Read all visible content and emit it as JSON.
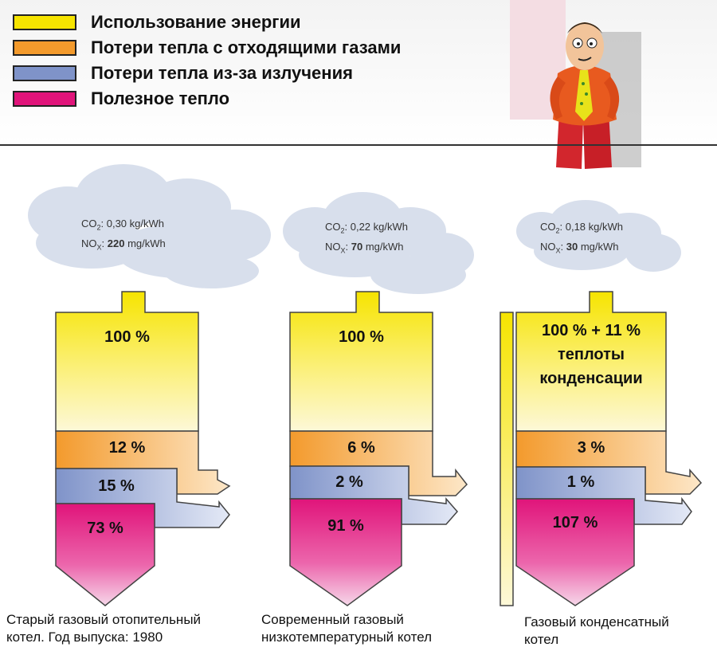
{
  "legend": [
    {
      "label": "Использование энергии",
      "color": "#f6e400"
    },
    {
      "label": "Потери тепла с отходящими газами",
      "color": "#f39a2c"
    },
    {
      "label": "Потери тепла из-за излучения",
      "color": "#7f93c9"
    },
    {
      "label": "Полезное тепло",
      "color": "#e0147a"
    }
  ],
  "boilers": [
    {
      "co2_prefix": "CO",
      "co2_sub": "2",
      "co2_value": ": 0,30 kg/kWh",
      "nox_prefix": "NO",
      "nox_sub": "X",
      "nox_sep": ": ",
      "nox_value": "220",
      "nox_unit": " mg/kWh",
      "energy_pct": "100 %",
      "exhaust_pct": "12 %",
      "radiation_pct": "15 %",
      "useful_pct": "73 %",
      "caption_line1": "Старый газовый отопительный",
      "caption_line2": "котел. Год выпуска: 1980"
    },
    {
      "co2_prefix": "CO",
      "co2_sub": "2",
      "co2_value": ": 0,22 kg/kWh",
      "nox_prefix": "NO",
      "nox_sub": "X",
      "nox_sep": ": ",
      "nox_value": "70",
      "nox_unit": " mg/kWh",
      "energy_pct": "100 %",
      "exhaust_pct": "6 %",
      "radiation_pct": "2 %",
      "useful_pct": "91 %",
      "caption_line1": "Современный газовый",
      "caption_line2": "низкотемпературный котел"
    },
    {
      "co2_prefix": "CO",
      "co2_sub": "2",
      "co2_value": ": 0,18 kg/kWh",
      "nox_prefix": "NO",
      "nox_sub": "X",
      "nox_sep": ": ",
      "nox_value": "30",
      "nox_unit": " mg/kWh",
      "energy_pct_line1": "100 % + 11 %",
      "energy_pct_line2": "теплоты",
      "energy_pct_line3": "конденсации",
      "exhaust_pct": "3 %",
      "radiation_pct": "1 %",
      "useful_pct": "107 %",
      "caption_line1": "Газовый конденсатный",
      "caption_line2": "котел"
    }
  ]
}
